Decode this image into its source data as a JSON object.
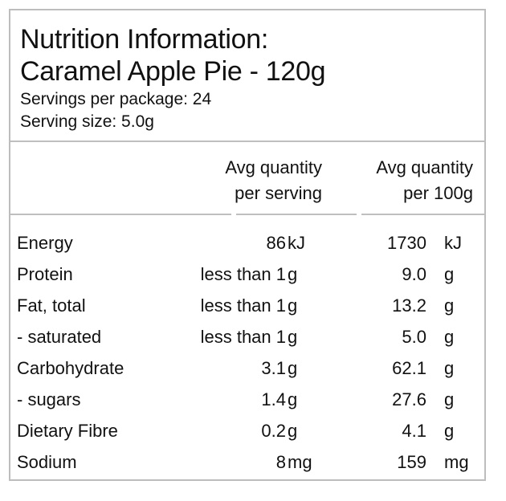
{
  "title": {
    "line1": "Nutrition Information:",
    "line2": "Caramel Apple Pie - 120g"
  },
  "servings_per_package": "Servings per package:  24",
  "serving_size": "Serving size: 5.0g",
  "columns": {
    "per_serving": [
      "Avg quantity",
      "per serving"
    ],
    "per_100g": [
      "Avg quantity",
      "per 100g"
    ]
  },
  "rows": [
    {
      "name": "Energy",
      "serving": "86",
      "serving_unit": "kJ",
      "per100": "1730",
      "per100_unit": "kJ"
    },
    {
      "name": "Protein",
      "serving": "less than 1",
      "serving_unit": "g",
      "per100": "9.0",
      "per100_unit": "g"
    },
    {
      "name": "Fat, total",
      "serving": "less than 1",
      "serving_unit": "g",
      "per100": "13.2",
      "per100_unit": "g"
    },
    {
      "name": "- saturated",
      "serving": "less than 1",
      "serving_unit": "g",
      "per100": "5.0",
      "per100_unit": "g"
    },
    {
      "name": "Carbohydrate",
      "serving": "3.1",
      "serving_unit": "g",
      "per100": "62.1",
      "per100_unit": "g"
    },
    {
      "name": "- sugars",
      "serving": "1.4",
      "serving_unit": "g",
      "per100": "27.6",
      "per100_unit": "g"
    },
    {
      "name": "Dietary Fibre",
      "serving": "0.2",
      "serving_unit": "g",
      "per100": "4.1",
      "per100_unit": "g"
    },
    {
      "name": "Sodium",
      "serving": "8",
      "serving_unit": "mg",
      "per100": "159",
      "per100_unit": "mg"
    }
  ]
}
